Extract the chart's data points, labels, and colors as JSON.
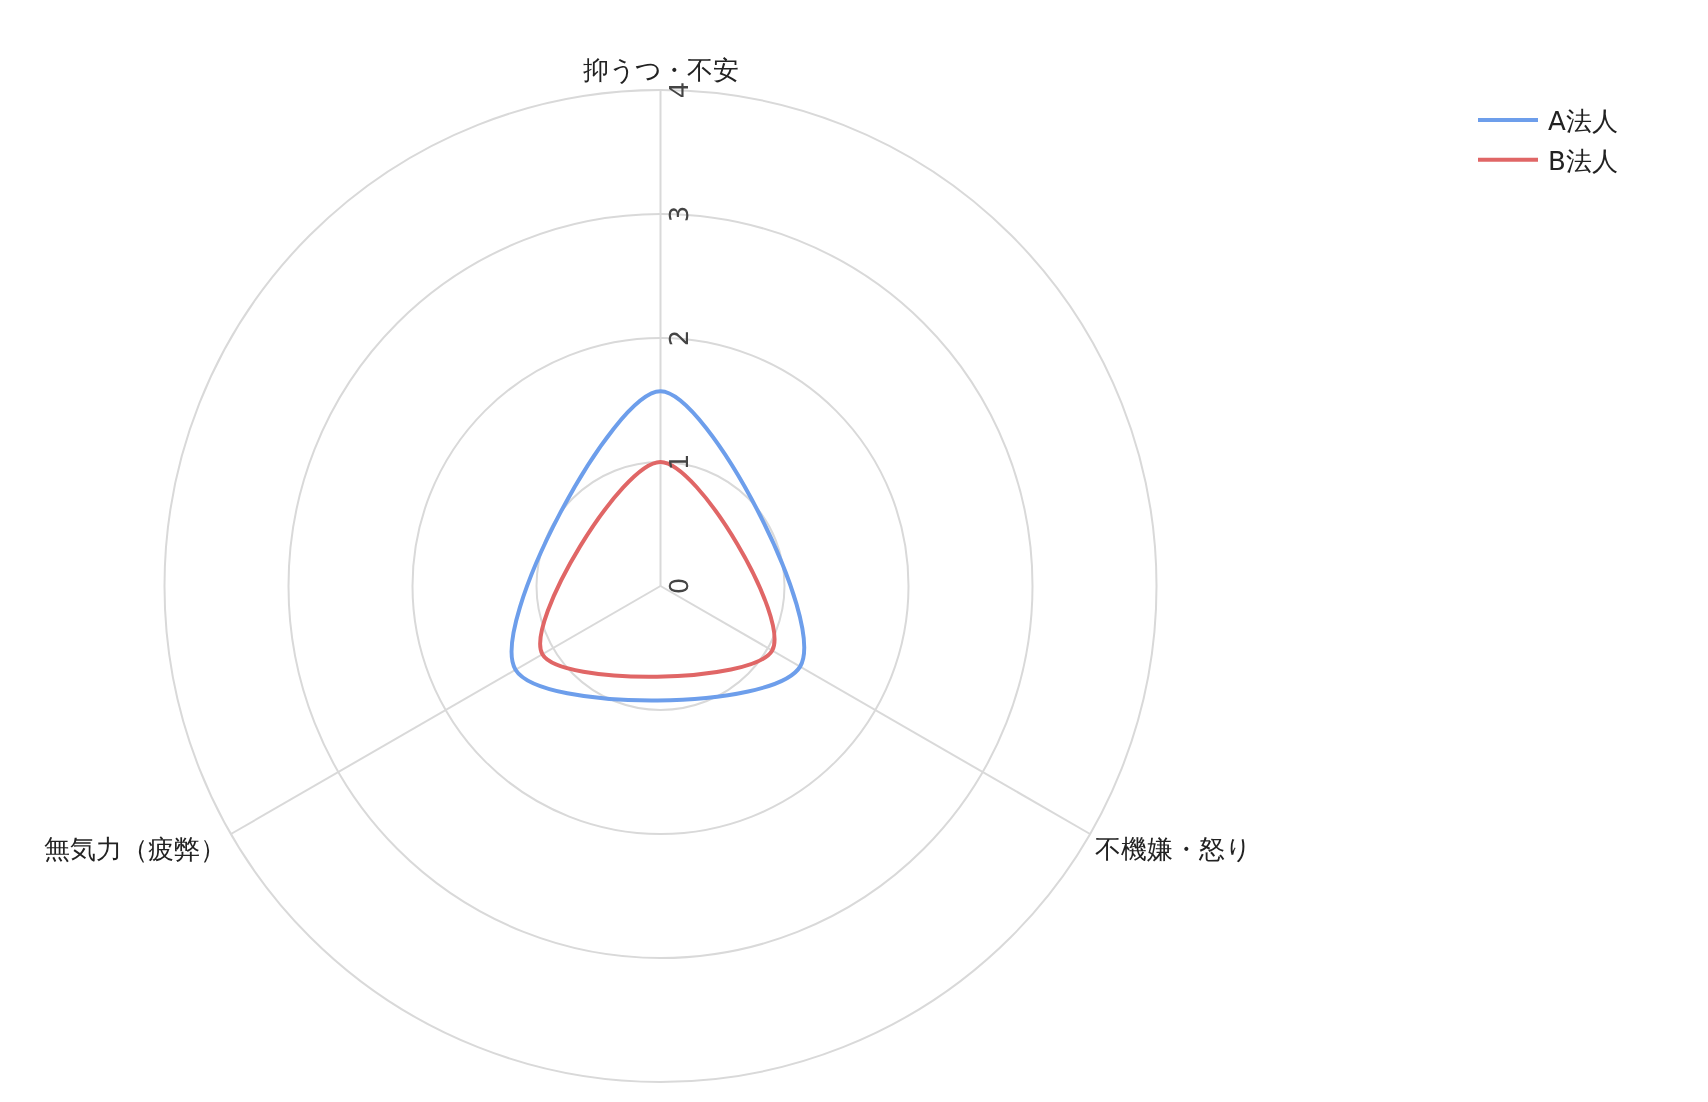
{
  "chart_data": {
    "type": "radar",
    "categories": [
      "抑うつ・不安",
      "不機嫌・怒り",
      "無気力（疲弊）"
    ],
    "series": [
      {
        "name": "A法人",
        "color": "#6d9eeb",
        "values": [
          1.57,
          1.3,
          1.35
        ]
      },
      {
        "name": "B法人",
        "color": "#e06666",
        "values": [
          1.0,
          1.04,
          1.1
        ]
      }
    ],
    "ylim": [
      0,
      4
    ],
    "yticks": [
      0,
      1,
      2,
      3,
      4
    ],
    "grid": true,
    "legend": "top right",
    "marker": "none",
    "line_style": "solid"
  }
}
